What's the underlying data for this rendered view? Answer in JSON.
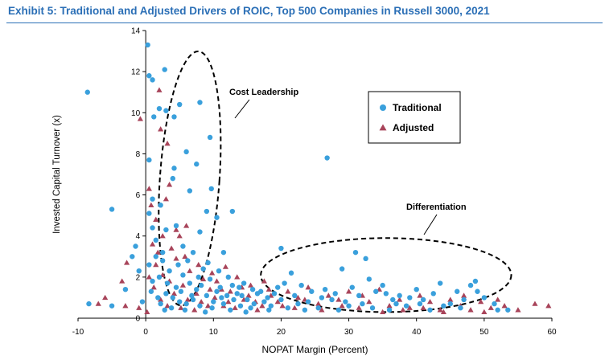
{
  "exhibit_title": "Exhibit 5: Traditional and Adjusted Drivers of ROIC, Top 500 Companies in Russell 3000, 2021",
  "colors": {
    "title": "#2b6fb6",
    "traditional": "#3aa0dc",
    "adjusted": "#a8445a",
    "axis": "#000000"
  },
  "chart_data": {
    "type": "scatter",
    "title": "Exhibit 5: Traditional and Adjusted Drivers of ROIC, Top 500 Companies in Russell 3000, 2021",
    "xlabel": "NOPAT Margin (Percent)",
    "ylabel": "Invested Capital Turnover (x)",
    "xlim": [
      -10,
      60
    ],
    "ylim": [
      0,
      14
    ],
    "x_ticks": [
      "-10",
      "0",
      "10",
      "20",
      "30",
      "40",
      "50",
      "60"
    ],
    "y_ticks": [
      "0",
      "2",
      "4",
      "6",
      "8",
      "10",
      "12",
      "14"
    ],
    "grid": false,
    "legend": {
      "placement": "top-right",
      "entries": [
        "Traditional",
        "Adjusted"
      ]
    },
    "annotations": [
      {
        "label": "Cost Leadership",
        "shape": "dashed-ellipse",
        "center": [
          6.5,
          6.8
        ],
        "radius": [
          4.4,
          6.2
        ]
      },
      {
        "label": "Differentiation",
        "shape": "dashed-ellipse",
        "center": [
          35.5,
          2.1
        ],
        "radius": [
          18.5,
          1.8
        ]
      }
    ],
    "series": [
      {
        "name": "Traditional",
        "marker": "circle",
        "points": [
          [
            -8.6,
            11.0
          ],
          [
            -5,
            5.3
          ],
          [
            -8.4,
            0.7
          ],
          [
            -5,
            0.6
          ],
          [
            -3,
            1.4
          ],
          [
            -2,
            3.0
          ],
          [
            -1.5,
            3.5
          ],
          [
            -1,
            2.3
          ],
          [
            -0.5,
            0.8
          ],
          [
            0.3,
            13.3
          ],
          [
            0.5,
            11.8
          ],
          [
            1,
            11.6
          ],
          [
            1.2,
            9.8
          ],
          [
            2.8,
            12.1
          ],
          [
            2,
            10.2
          ],
          [
            3,
            10.1
          ],
          [
            5,
            10.4
          ],
          [
            8,
            10.5
          ],
          [
            4.2,
            9.8
          ],
          [
            6,
            8.1
          ],
          [
            7.5,
            7.5
          ],
          [
            9.5,
            8.8
          ],
          [
            4,
            6.8
          ],
          [
            4.2,
            7.3
          ],
          [
            6.5,
            6.2
          ],
          [
            9.7,
            6.3
          ],
          [
            0.5,
            7.7
          ],
          [
            1,
            5.8
          ],
          [
            2.2,
            5.5
          ],
          [
            4.5,
            4.5
          ],
          [
            8,
            4.2
          ],
          [
            9,
            5.2
          ],
          [
            10.5,
            4.9
          ],
          [
            12.8,
            5.2
          ],
          [
            26.8,
            7.8
          ],
          [
            0.5,
            5.1
          ],
          [
            1,
            4.4
          ],
          [
            1.5,
            3.8
          ],
          [
            2.5,
            3.2
          ],
          [
            3,
            4.3
          ],
          [
            5.5,
            3.5
          ],
          [
            7,
            3.2
          ],
          [
            11.5,
            3.2
          ],
          [
            20,
            3.4
          ],
          [
            31,
            3.2
          ],
          [
            32.5,
            2.9
          ],
          [
            29,
            2.4
          ],
          [
            33,
            1.9
          ],
          [
            35,
            1.6
          ],
          [
            37.5,
            1.1
          ],
          [
            40,
            1.4
          ],
          [
            42.5,
            1.2
          ],
          [
            43.5,
            1.7
          ],
          [
            46,
            1.3
          ],
          [
            48,
            1.6
          ],
          [
            48.7,
            1.8
          ],
          [
            50,
            1.0
          ],
          [
            51.5,
            0.7
          ],
          [
            52,
            0.4
          ],
          [
            41,
            0.9
          ],
          [
            45,
            0.7
          ],
          [
            38.5,
            0.6
          ],
          [
            36,
            0.4
          ],
          [
            33.5,
            0.5
          ],
          [
            30,
            0.6
          ],
          [
            27.5,
            0.9
          ],
          [
            26.5,
            1.4
          ],
          [
            24.5,
            1.3
          ],
          [
            23,
            1.6
          ],
          [
            21.5,
            2.2
          ],
          [
            19.5,
            1.5
          ],
          [
            18,
            1.0
          ],
          [
            16.5,
            1.2
          ],
          [
            15.5,
            0.5
          ],
          [
            14,
            0.6
          ],
          [
            13.5,
            1.2
          ],
          [
            12.5,
            0.4
          ],
          [
            11.5,
            0.7
          ],
          [
            10.5,
            1.3
          ],
          [
            9.5,
            1.9
          ],
          [
            8.5,
            2.4
          ],
          [
            7.5,
            1.4
          ],
          [
            6.5,
            1.7
          ],
          [
            5.5,
            2.1
          ],
          [
            4.5,
            1.5
          ],
          [
            3.5,
            2.3
          ],
          [
            2.5,
            2.8
          ],
          [
            1.5,
            3.0
          ],
          [
            0.5,
            2.6
          ],
          [
            1,
            1.8
          ],
          [
            2,
            2.0
          ],
          [
            3,
            1.2
          ],
          [
            4,
            1.0
          ],
          [
            5,
            0.8
          ],
          [
            6,
            0.7
          ],
          [
            7,
            0.9
          ],
          [
            8,
            0.6
          ],
          [
            9,
            1.1
          ],
          [
            10,
            0.8
          ],
          [
            11,
            1.5
          ],
          [
            12,
            1.1
          ],
          [
            13,
            0.9
          ],
          [
            14.5,
            1.7
          ],
          [
            15,
            0.9
          ],
          [
            16,
            0.7
          ],
          [
            17,
            1.3
          ],
          [
            18.5,
            0.6
          ],
          [
            20,
            0.9
          ],
          [
            21,
            0.5
          ],
          [
            22,
            1.1
          ],
          [
            24,
            0.8
          ],
          [
            25.5,
            0.5
          ],
          [
            28,
            1.2
          ],
          [
            29.5,
            0.8
          ],
          [
            31.5,
            1.1
          ],
          [
            34,
            1.3
          ],
          [
            36.5,
            0.9
          ],
          [
            39,
            1.0
          ],
          [
            44,
            0.6
          ],
          [
            47,
            0.9
          ],
          [
            49,
            1.3
          ],
          [
            3.2,
            1.7
          ],
          [
            4.8,
            2.6
          ],
          [
            6.2,
            2.8
          ],
          [
            7.8,
            2.0
          ],
          [
            9.2,
            2.7
          ],
          [
            10.8,
            2.3
          ],
          [
            12.2,
            2.0
          ],
          [
            13.8,
            1.5
          ],
          [
            2.2,
            0.7
          ],
          [
            3.8,
            0.5
          ],
          [
            5.2,
            1.3
          ],
          [
            6.8,
            1.1
          ],
          [
            8.2,
            1.6
          ],
          [
            9.8,
            0.5
          ],
          [
            11.2,
            1.0
          ],
          [
            12.8,
            1.6
          ],
          [
            14.2,
            1.1
          ],
          [
            15.8,
            1.4
          ],
          [
            17.5,
            0.8
          ],
          [
            19,
            1.2
          ],
          [
            20.5,
            1.7
          ],
          [
            22.5,
            0.7
          ],
          [
            26,
            1.0
          ],
          [
            30.5,
            1.5
          ],
          [
            35.5,
            1.2
          ],
          [
            40.5,
            0.7
          ],
          [
            46.5,
            0.5
          ],
          [
            0.8,
            1.3
          ],
          [
            1.8,
            1.0
          ],
          [
            2.8,
            0.4
          ],
          [
            5.8,
            0.4
          ],
          [
            8.8,
            0.3
          ],
          [
            14.8,
            0.3
          ],
          [
            18.2,
            0.4
          ],
          [
            23.5,
            0.4
          ],
          [
            28.5,
            0.4
          ],
          [
            32,
            0.7
          ],
          [
            37,
            0.7
          ],
          [
            42,
            0.4
          ],
          [
            53.5,
            0.4
          ]
        ]
      },
      {
        "name": "Adjusted",
        "marker": "triangle",
        "points": [
          [
            -0.8,
            9.7
          ],
          [
            0.5,
            6.3
          ],
          [
            0.8,
            5.5
          ],
          [
            1.5,
            4.8
          ],
          [
            2,
            11.1
          ],
          [
            2.2,
            9.2
          ],
          [
            3.2,
            8.5
          ],
          [
            3.5,
            6.5
          ],
          [
            3,
            5.8
          ],
          [
            4.5,
            4.3
          ],
          [
            2.5,
            4.0
          ],
          [
            1,
            3.6
          ],
          [
            -2.8,
            2.7
          ],
          [
            -3.5,
            1.8
          ],
          [
            -6,
            1.0
          ],
          [
            -7,
            0.7
          ],
          [
            -3,
            0.6
          ],
          [
            -1,
            0.5
          ],
          [
            0.2,
            0.3
          ],
          [
            1.5,
            2.6
          ],
          [
            2.5,
            2.1
          ],
          [
            3.5,
            1.8
          ],
          [
            4.5,
            2.9
          ],
          [
            5.5,
            1.6
          ],
          [
            6.5,
            2.3
          ],
          [
            7.5,
            1.2
          ],
          [
            8.5,
            1.9
          ],
          [
            9.5,
            1.4
          ],
          [
            10.5,
            1.8
          ],
          [
            11.5,
            0.6
          ],
          [
            12.5,
            1.3
          ],
          [
            13.5,
            2.0
          ],
          [
            14.5,
            0.9
          ],
          [
            15.5,
            1.6
          ],
          [
            16.5,
            0.4
          ],
          [
            17.5,
            1.8
          ],
          [
            18.5,
            1.1
          ],
          [
            19.5,
            0.8
          ],
          [
            21,
            1.3
          ],
          [
            22.5,
            1.0
          ],
          [
            24,
            1.5
          ],
          [
            25.5,
            0.7
          ],
          [
            27,
            1.1
          ],
          [
            28.5,
            0.9
          ],
          [
            30,
            1.3
          ],
          [
            31.5,
            0.5
          ],
          [
            33,
            0.8
          ],
          [
            34.5,
            1.4
          ],
          [
            36,
            0.6
          ],
          [
            37.5,
            0.9
          ],
          [
            39,
            0.5
          ],
          [
            40.5,
            1.1
          ],
          [
            42,
            0.8
          ],
          [
            43.5,
            0.4
          ],
          [
            45,
            0.9
          ],
          [
            46.5,
            0.6
          ],
          [
            48,
            0.4
          ],
          [
            49.5,
            0.8
          ],
          [
            51,
            0.5
          ],
          [
            53,
            0.6
          ],
          [
            55,
            0.4
          ],
          [
            57.5,
            0.7
          ],
          [
            59.5,
            0.6
          ],
          [
            1.2,
            1.5
          ],
          [
            2.2,
            0.9
          ],
          [
            3.2,
            0.6
          ],
          [
            4.2,
            1.2
          ],
          [
            5.2,
            0.5
          ],
          [
            6.2,
            0.9
          ],
          [
            7.2,
            0.4
          ],
          [
            8.2,
            0.8
          ],
          [
            9.2,
            0.6
          ],
          [
            10.2,
            1.0
          ],
          [
            11.2,
            1.4
          ],
          [
            12.2,
            0.8
          ],
          [
            13.2,
            0.5
          ],
          [
            14.2,
            1.5
          ],
          [
            15.2,
            1.1
          ],
          [
            16.2,
            0.8
          ],
          [
            17.2,
            0.6
          ],
          [
            18.2,
            1.4
          ],
          [
            20.2,
            0.6
          ],
          [
            22,
            0.5
          ],
          [
            23.5,
            0.9
          ],
          [
            26,
            0.4
          ],
          [
            29,
            0.6
          ],
          [
            32,
            1.1
          ],
          [
            35,
            0.3
          ],
          [
            38,
            0.4
          ],
          [
            41,
            0.5
          ],
          [
            44,
            0.3
          ],
          [
            47,
            1.1
          ],
          [
            50,
            0.3
          ],
          [
            52,
            0.9
          ],
          [
            0.5,
            2.0
          ],
          [
            1.8,
            3.2
          ],
          [
            3.8,
            3.4
          ],
          [
            5.8,
            3.0
          ],
          [
            7.8,
            2.6
          ],
          [
            9.8,
            2.2
          ],
          [
            11.8,
            2.5
          ],
          [
            5,
            4.0
          ],
          [
            6,
            4.5
          ]
        ]
      }
    ]
  }
}
